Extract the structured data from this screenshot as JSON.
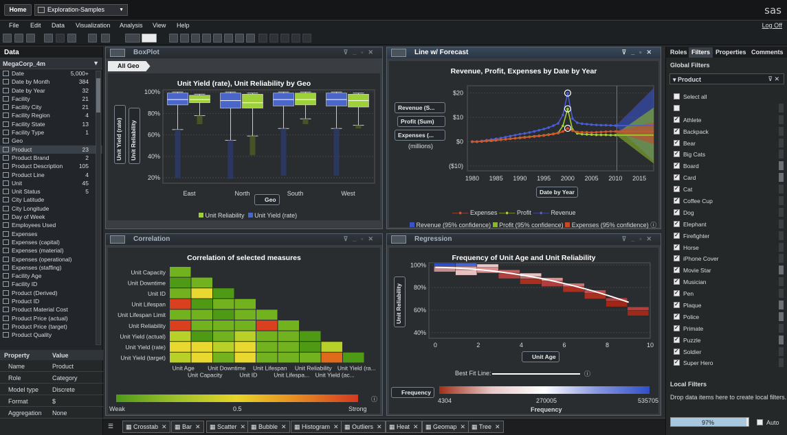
{
  "top": {
    "home": "Home",
    "report": "Exploration-Samples",
    "logo": "sas"
  },
  "menu": {
    "items": [
      "File",
      "Edit",
      "Data",
      "Visualization",
      "Analysis",
      "View",
      "Help"
    ],
    "logoff": "Log Off"
  },
  "data_pane": {
    "title": "Data",
    "source": "MegaCorp_4m",
    "items": [
      {
        "label": "Date",
        "count": "5,000+"
      },
      {
        "label": "Date by Month",
        "count": "384"
      },
      {
        "label": "Date by Year",
        "count": "32"
      },
      {
        "label": "Facility",
        "count": "21"
      },
      {
        "label": "Facility City",
        "count": "21"
      },
      {
        "label": "Facility Region",
        "count": "4"
      },
      {
        "label": "Facility State",
        "count": "13"
      },
      {
        "label": "Facility Type",
        "count": "1"
      },
      {
        "label": "Geo",
        "count": ""
      },
      {
        "label": "Product",
        "count": "23"
      },
      {
        "label": "Product Brand",
        "count": "2"
      },
      {
        "label": "Product Description",
        "count": "105"
      },
      {
        "label": "Product Line",
        "count": "4"
      },
      {
        "label": "Unit",
        "count": "45"
      },
      {
        "label": "Unit Status",
        "count": "5"
      },
      {
        "label": "City Latitude",
        "count": ""
      },
      {
        "label": "City Longitude",
        "count": ""
      },
      {
        "label": "Day of Week",
        "count": ""
      },
      {
        "label": "Employees Used",
        "count": ""
      },
      {
        "label": "Expenses",
        "count": ""
      },
      {
        "label": "Expenses (capital)",
        "count": ""
      },
      {
        "label": "Expenses (material)",
        "count": ""
      },
      {
        "label": "Expenses (operational)",
        "count": ""
      },
      {
        "label": "Expenses (staffing)",
        "count": ""
      },
      {
        "label": "Facility Age",
        "count": ""
      },
      {
        "label": "Facility ID",
        "count": ""
      },
      {
        "label": "Product (Derived)",
        "count": ""
      },
      {
        "label": "Product ID",
        "count": ""
      },
      {
        "label": "Product Material Cost",
        "count": ""
      },
      {
        "label": "Product Price (actual)",
        "count": ""
      },
      {
        "label": "Product Price (target)",
        "count": ""
      },
      {
        "label": "Product Quality",
        "count": ""
      }
    ],
    "props_header": {
      "property": "Property",
      "value": "Value"
    },
    "props": [
      {
        "k": "Name",
        "v": "Product"
      },
      {
        "k": "Role",
        "v": "Category"
      },
      {
        "k": "Model type",
        "v": "Discrete"
      },
      {
        "k": "Format",
        "v": "$"
      },
      {
        "k": "Aggregation",
        "v": "None"
      }
    ]
  },
  "boxplot": {
    "panel_title": "BoxPlot",
    "tab": "All Geo",
    "chart_title": "Unit Yield (rate), Unit Reliability by Geo",
    "y_buttons": [
      "Unit Yield (rate)",
      "Unit Reliability"
    ],
    "x_button": "Geo",
    "legend": [
      "Unit Reliability",
      "Unit Yield (rate)"
    ]
  },
  "forecast": {
    "panel_title": "Line w/ Forecast",
    "chart_title": "Revenue, Profit, Expenses by Date by Year",
    "y_buttons": [
      "Revenue (S...",
      "Profit (Sum)",
      "Expenses (..."
    ],
    "units": "(millions)",
    "x_button": "Date by Year",
    "legend1": [
      "Expenses",
      "Profit",
      "Revenue"
    ],
    "legend2": [
      "Revenue (95% confidence)",
      "Profit (95% confidence)",
      "Expenses (95% confidence)"
    ]
  },
  "correlation": {
    "panel_title": "Correlation",
    "chart_title": "Correlation of selected measures",
    "legend_left": "Weak",
    "legend_mid": "0.5",
    "legend_right": "Strong"
  },
  "regression": {
    "panel_title": "Regression",
    "chart_title": "Frequency of Unit Age and Unit Reliability",
    "y_button": "Unit Reliability",
    "x_button": "Unit Age",
    "fit_label": "Best Fit Line:",
    "freq_button": "Frequency",
    "freq_min": "4304",
    "freq_mid": "270005",
    "freq_max": "535705",
    "freq_title": "Frequency"
  },
  "chart_data": [
    {
      "type": "box",
      "title": "Unit Yield (rate), Unit Reliability by Geo",
      "categories": [
        "East",
        "North",
        "South",
        "West"
      ],
      "yticks": [
        "20%",
        "40%",
        "60%",
        "80%",
        "100%"
      ],
      "ylim": [
        15,
        102
      ],
      "series": [
        {
          "name": "Unit Yield (rate)",
          "color": "#4a66c8",
          "boxes": [
            {
              "min": 20,
              "q1": 88,
              "med": 93,
              "q3": 99,
              "max": 100,
              "lw": 65
            },
            {
              "min": 19,
              "q1": 85,
              "med": 92,
              "q3": 99,
              "max": 100,
              "lw": 55
            },
            {
              "min": 22,
              "q1": 87,
              "med": 93,
              "q3": 99,
              "max": 100,
              "lw": 66
            },
            {
              "min": 22,
              "q1": 87,
              "med": 93,
              "q3": 99,
              "max": 100,
              "lw": 66
            }
          ]
        },
        {
          "name": "Unit Reliability",
          "color": "#9ed03a",
          "boxes": [
            {
              "min": 70,
              "q1": 90,
              "med": 93,
              "q3": 97,
              "max": 98,
              "lw": 78
            },
            {
              "min": 41,
              "q1": 85,
              "med": 90,
              "q3": 98,
              "max": 99,
              "lw": 59
            },
            {
              "min": 70,
              "q1": 88,
              "med": 93,
              "q3": 99,
              "max": 100,
              "lw": 75
            },
            {
              "min": 66,
              "q1": 86,
              "med": 92,
              "q3": 98,
              "max": 99,
              "lw": 69
            }
          ]
        }
      ]
    },
    {
      "type": "line",
      "title": "Revenue, Profit, Expenses by Date by Year",
      "x": [
        1980,
        1981,
        1982,
        1983,
        1984,
        1985,
        1986,
        1987,
        1988,
        1989,
        1990,
        1991,
        1992,
        1993,
        1994,
        1995,
        1996,
        1997,
        1998,
        1999,
        2000,
        2001,
        2002,
        2003,
        2004,
        2005,
        2006,
        2007,
        2008,
        2009,
        2010
      ],
      "xticks": [
        1980,
        1985,
        1990,
        1995,
        2000,
        2005,
        2010,
        2015
      ],
      "yticks": [
        "($10)",
        "$0",
        "$10",
        "$20"
      ],
      "ylim": [
        -12,
        23
      ],
      "series": [
        {
          "name": "Revenue",
          "color": "#4a5ed8",
          "values": [
            0,
            0,
            0.3,
            0.6,
            0.9,
            1.2,
            1.5,
            1.9,
            2.3,
            2.7,
            3.1,
            3.4,
            3.8,
            4.2,
            4.7,
            5.2,
            5.8,
            6.6,
            7.5,
            11,
            20,
            9.5,
            7.8,
            7.4,
            7.2,
            7.0,
            6.9,
            6.8,
            6.8,
            6.7,
            6.6
          ]
        },
        {
          "name": "Profit",
          "color": "#a6d12c",
          "values": [
            0,
            0,
            0.1,
            0.3,
            0.4,
            0.6,
            0.8,
            1.0,
            1.2,
            1.4,
            1.6,
            1.8,
            2.0,
            2.2,
            2.4,
            2.6,
            2.9,
            3.2,
            3.6,
            6.5,
            13.5,
            5.0,
            3.4,
            3.1,
            3.0,
            2.9,
            2.8,
            2.8,
            2.8,
            2.7,
            2.7
          ]
        },
        {
          "name": "Expenses",
          "color": "#d8532e",
          "values": [
            0,
            0,
            0.2,
            0.3,
            0.5,
            0.7,
            0.8,
            1.0,
            1.2,
            1.4,
            1.5,
            1.7,
            1.9,
            2.1,
            2.3,
            2.5,
            2.8,
            3.1,
            3.5,
            4.2,
            5.5,
            4.5,
            4.0,
            3.9,
            3.9,
            3.8,
            3.9,
            4.0,
            4.1,
            4.2,
            4.2
          ]
        }
      ]
    },
    {
      "type": "heatmap",
      "title": "Correlation of selected measures",
      "rows": [
        "Unit Capacity",
        "Unit Downtime",
        "Unit ID",
        "Unit Lifespan",
        "Unit Lifespan Limit",
        "Unit Reliability",
        "Unit Yield (actual)",
        "Unit Yield (rate)",
        "Unit Yield (target)"
      ],
      "cols": [
        "Unit Age",
        "Unit Capacity",
        "Unit Downtime",
        "Unit ID",
        "Unit Lifespan",
        "Unit Lifespa...",
        "Unit Reliability",
        "Unit Yield (ac...",
        "Unit Yield (ra..."
      ],
      "values": [
        [
          0.2
        ],
        [
          0.15,
          0.2
        ],
        [
          0.2,
          0.45,
          0.15
        ],
        [
          0.95,
          0.15,
          0.2,
          0.2
        ],
        [
          0.2,
          0.2,
          0.15,
          0.2,
          0.2
        ],
        [
          0.9,
          0.2,
          0.2,
          0.2,
          0.9,
          0.2
        ],
        [
          0.3,
          0.15,
          0.2,
          0.25,
          0.2,
          0.2,
          0.15
        ],
        [
          0.5,
          0.5,
          0.25,
          0.5,
          0.2,
          0.2,
          0.15,
          0.25
        ],
        [
          0.3,
          0.45,
          0.2,
          0.45,
          0.2,
          0.2,
          0.2,
          0.8,
          0.15
        ]
      ]
    },
    {
      "type": "heatmap",
      "title": "Frequency of Unit Age and Unit Reliability",
      "xticks": [
        0,
        2,
        4,
        6,
        8,
        10
      ],
      "yticks": [
        "40%",
        "60%",
        "80%",
        "100%"
      ],
      "range": [
        4304,
        535705
      ]
    }
  ],
  "filters": {
    "tabs": [
      "Roles",
      "Filters",
      "Properties",
      "Comments"
    ],
    "global_title": "Global Filters",
    "product_label": "Product",
    "select_all": "Select all",
    "items": [
      "Athlete",
      "Backpack",
      "Bear",
      "Big Cats",
      "Board",
      "Card",
      "Cat",
      "Coffee Cup",
      "Dog",
      "Elephant",
      "Firefighter",
      "Horse",
      "iPhone Cover",
      "Movie Star",
      "Musician",
      "Pen",
      "Plaque",
      "Police",
      "Primate",
      "Puzzle",
      "Soldier",
      "Super Hero"
    ],
    "local_title": "Local Filters",
    "local_hint": "Drop data items here to create local filters.",
    "progress": "97%",
    "auto": "Auto"
  },
  "bottom_tabs": [
    "Crosstab",
    "Bar",
    "Scatter",
    "Bubble",
    "Histogram",
    "Outliers",
    "Heat",
    "Geomap",
    "Tree"
  ]
}
